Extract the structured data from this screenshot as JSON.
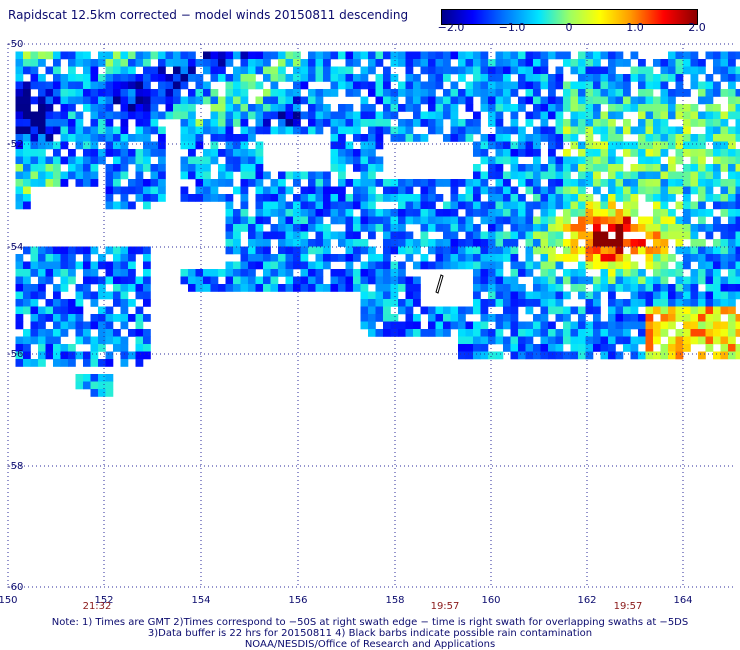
{
  "title": "Rapidscat 12.5km corrected − model winds 20150811 descending",
  "colorbar": {
    "ticks": [
      {
        "label": "−2.0",
        "value": -2.0
      },
      {
        "label": "−1.0",
        "value": -1.0
      },
      {
        "label": "0",
        "value": 0
      },
      {
        "label": "1.0",
        "value": 1.0
      },
      {
        "label": "2.0",
        "value": 2.0
      }
    ]
  },
  "axes": {
    "lon_ticks": [
      "150",
      "152",
      "154",
      "156",
      "158",
      "160",
      "162",
      "164"
    ],
    "lat_ticks": [
      "-50",
      "-52",
      "-54",
      "-56",
      "-58",
      "-60"
    ],
    "lon_range": [
      150,
      165
    ],
    "lat_range": [
      -60,
      -50
    ],
    "grid": true
  },
  "times": [
    "21:32",
    "19:57",
    "19:57"
  ],
  "notes": [
    "Note: 1) Times are GMT 2)Times correspond to −50S at right swath edge − time is right swath for overlapping swaths at −5DS",
    "3)Data buffer is 22 hrs for 20150811 4) Black barbs indicate possible rain contamination",
    "NOAA/NESDIS/Office of Research and Applications"
  ],
  "colors": {
    "text": "#0b0b6e",
    "time_text": "#8b1a1a",
    "grid": "#2b2b9b"
  }
}
